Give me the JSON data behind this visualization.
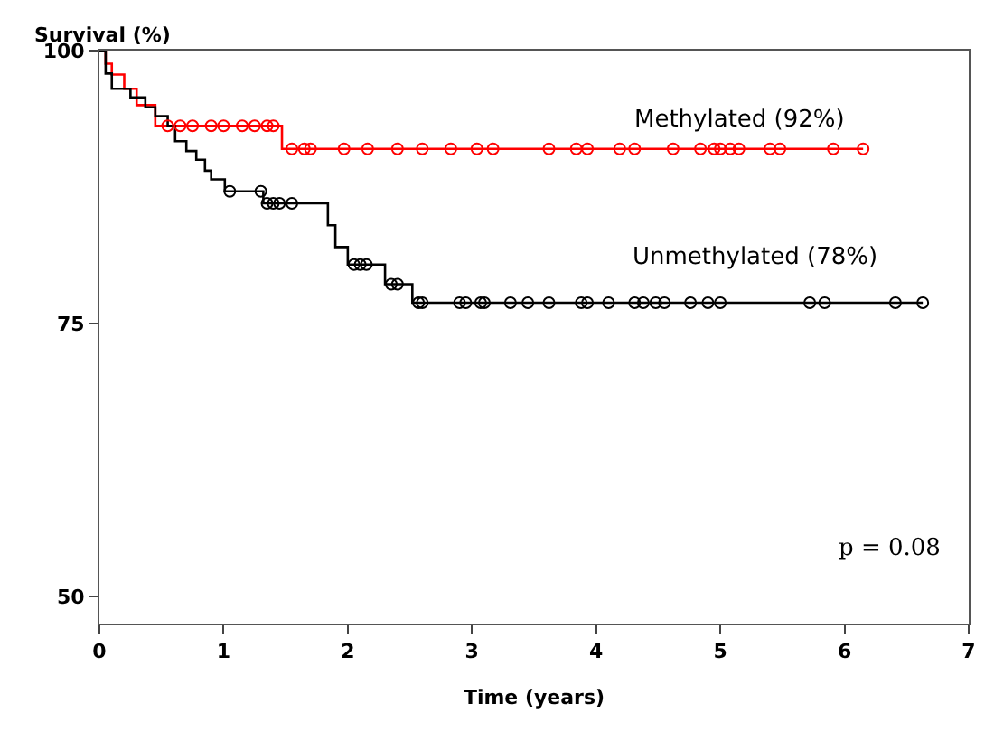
{
  "chart_data": {
    "type": "step",
    "xlabel": "Time (years)",
    "ylabel": "Survival (%)",
    "xlim": [
      0,
      7
    ],
    "xticks": [
      0,
      1,
      2,
      3,
      4,
      5,
      6,
      7
    ],
    "ylim": [
      47.5,
      100
    ],
    "yticks": [
      50,
      75,
      100
    ],
    "series": [
      {
        "color": "#ff0000",
        "marker": "none",
        "x": [
          0,
          0.05,
          0.1,
          0.2,
          0.3,
          0.45,
          1.47,
          6.15
        ],
        "values": [
          100,
          98.8,
          97.8,
          96.5,
          95,
          93.1,
          91,
          91
        ]
      },
      {
        "color": "#000000",
        "marker": "none",
        "x": [
          0,
          0.05,
          0.1,
          0.25,
          0.37,
          0.45,
          0.55,
          0.61,
          0.7,
          0.78,
          0.85,
          0.9,
          1.01,
          1.32,
          1.84,
          1.9,
          2.0,
          2.3,
          2.52,
          6.63
        ],
        "values": [
          100,
          97.9,
          96.5,
          95.7,
          94.8,
          94,
          93.1,
          91.7,
          90.8,
          90,
          89,
          88.2,
          87.1,
          86,
          84,
          82,
          80.4,
          78.6,
          76.9,
          76.9
        ]
      },
      {
        "type": "scatter",
        "color": "#ff0000",
        "marker": "circle",
        "x": [
          0.55,
          0.65,
          0.75,
          0.9,
          1.0,
          1.15,
          1.25,
          1.35,
          1.4
        ],
        "values": [
          93.1,
          93.1,
          93.1,
          93.1,
          93.1,
          93.1,
          93.1,
          93.1,
          93.1
        ]
      },
      {
        "type": "scatter",
        "color": "#ff0000",
        "marker": "circle",
        "x": [
          1.55,
          1.65,
          1.7,
          1.97,
          2.16,
          2.4,
          2.6,
          2.83,
          3.04,
          3.17,
          3.62,
          3.84,
          3.93,
          4.19,
          4.31,
          4.62,
          4.84,
          4.95,
          5.0,
          5.08,
          5.15,
          5.4,
          5.48,
          5.91,
          6.15
        ],
        "values": [
          91,
          91,
          91,
          91,
          91,
          91,
          91,
          91,
          91,
          91,
          91,
          91,
          91,
          91,
          91,
          91,
          91,
          91,
          91,
          91,
          91,
          91,
          91,
          91,
          91
        ]
      },
      {
        "type": "scatter",
        "color": "#000000",
        "marker": "circle",
        "x": [
          1.05,
          1.3,
          1.35,
          1.4,
          1.45,
          1.55,
          2.05,
          2.1,
          2.15,
          2.35,
          2.4
        ],
        "values": [
          87.1,
          87.1,
          86,
          86,
          86,
          86,
          80.4,
          80.4,
          80.4,
          78.6,
          78.6
        ]
      },
      {
        "type": "scatter",
        "color": "#000000",
        "marker": "circle",
        "x": [
          2.57,
          2.6,
          2.9,
          2.95,
          3.07,
          3.1,
          3.31,
          3.45,
          3.62,
          3.88,
          3.93,
          4.1,
          4.31,
          4.38,
          4.48,
          4.55,
          4.76,
          4.9,
          5.0,
          5.72,
          5.84,
          6.41,
          6.63
        ],
        "values": [
          76.9,
          76.9,
          76.9,
          76.9,
          76.9,
          76.9,
          76.9,
          76.9,
          76.9,
          76.9,
          76.9,
          76.9,
          76.9,
          76.9,
          76.9,
          76.9,
          76.9,
          76.9,
          76.9,
          76.9,
          76.9,
          76.9,
          76.9
        ]
      }
    ],
    "annotations": [
      "Methylated (92%)",
      "Unmethylated (78%)",
      "p = 0.08"
    ]
  }
}
